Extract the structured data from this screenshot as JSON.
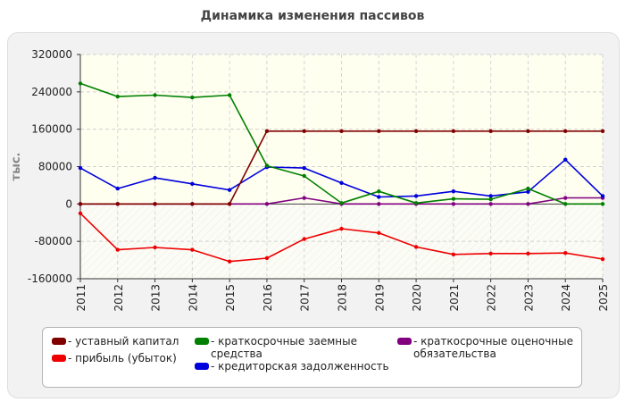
{
  "chart_data": {
    "type": "line",
    "title": "Динамика изменения пассивов",
    "ylabel": "тыс.",
    "xlabel": "",
    "x": [
      "2011",
      "2012",
      "2013",
      "2014",
      "2015",
      "2016",
      "2017",
      "2018",
      "2019",
      "2020",
      "2021",
      "2022",
      "2023",
      "2024",
      "2025"
    ],
    "ylim": [
      -160000,
      320000
    ],
    "yticks": [
      -160000,
      -80000,
      0,
      80000,
      160000,
      240000,
      320000
    ],
    "ytick_labels": [
      "-160000",
      "-80000",
      "0",
      "80000",
      "160000",
      "240000",
      "320000"
    ],
    "grid": true,
    "legend_position": "bottom",
    "series": [
      {
        "name": "- уставный капитал",
        "color": "#800000",
        "values": [
          0,
          0,
          0,
          0,
          0,
          156000,
          156000,
          156000,
          156000,
          156000,
          156000,
          156000,
          156000,
          156000,
          156000
        ]
      },
      {
        "name": "- прибыль (убыток)",
        "color": "#ee0000",
        "values": [
          -20000,
          -98000,
          -93000,
          -98000,
          -123000,
          -116000,
          -75000,
          -53000,
          -62000,
          -92000,
          -108000,
          -106000,
          -106000,
          -105000,
          -118000
        ]
      },
      {
        "name": "- краткосрочные заемные средства",
        "color": "#008000",
        "values": [
          258000,
          230000,
          233000,
          228000,
          233000,
          82000,
          60000,
          2000,
          27000,
          2000,
          11000,
          10000,
          33000,
          0,
          0
        ]
      },
      {
        "name": "- кредиторская задолженность",
        "color": "#0000dd",
        "values": [
          77000,
          33000,
          56000,
          43000,
          30000,
          79000,
          77000,
          45000,
          15000,
          17000,
          27000,
          17000,
          26000,
          95000,
          17000
        ]
      },
      {
        "name": "- краткосрочные оценочные обязательства",
        "color": "#800080",
        "values": [
          0,
          0,
          0,
          0,
          0,
          0,
          13000,
          0,
          0,
          0,
          0,
          0,
          0,
          13000,
          13000
        ]
      }
    ]
  }
}
